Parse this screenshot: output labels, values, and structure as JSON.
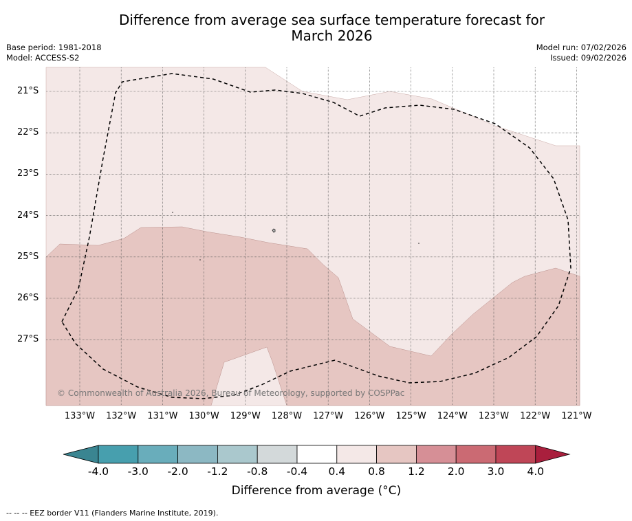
{
  "title_line1": "Difference from average sea surface temperature forecast for",
  "title_line2": "March 2026",
  "meta": {
    "base_period": "Base period: 1981-2018",
    "model": "Model: ACCESS-S2",
    "model_run": "Model run: 07/02/2026",
    "issued": "Issued: 09/02/2026"
  },
  "map": {
    "lat_labels": [
      "21°S",
      "22°S",
      "23°S",
      "24°S",
      "25°S",
      "26°S",
      "27°S"
    ],
    "lon_labels": [
      "133°W",
      "132°W",
      "131°W",
      "130°W",
      "129°W",
      "128°W",
      "127°W",
      "126°W",
      "125°W",
      "124°W",
      "123°W",
      "122°W",
      "121°W"
    ],
    "copyright": "© Commonwealth of Australia 2026, Bureau of Meteorology, supported by COSPPac",
    "colors": {
      "band_0_4_to_0_8": "#f4e8e7",
      "band_0_8_to_1_2": "#e6c6c2",
      "eez_border": "#000000"
    }
  },
  "colorbar": {
    "labels": [
      "-4.0",
      "-3.0",
      "-2.0",
      "-1.2",
      "-0.8",
      "-0.4",
      "0.4",
      "0.8",
      "1.2",
      "2.0",
      "3.0",
      "4.0"
    ],
    "colors": [
      "#3a8591",
      "#479fae",
      "#69adbb",
      "#8cb8c3",
      "#aac8cd",
      "#d3d9da",
      "#ffffff",
      "#f4e8e7",
      "#e6c6c2",
      "#d68f96",
      "#cb6a73",
      "#bf4657",
      "#a91f3d"
    ],
    "title": "Difference from average (°C)"
  },
  "footnote": "--  --  -- EEZ border V11 (Flanders Marine Institute, 2019)."
}
